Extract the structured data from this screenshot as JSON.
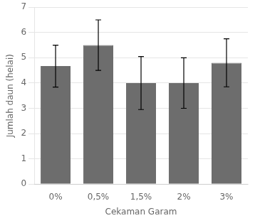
{
  "chart_data": {
    "type": "bar",
    "categories": [
      "0%",
      "0,5%",
      "1,5%",
      "2%",
      "3%"
    ],
    "values": [
      4.67,
      5.5,
      4.0,
      4.0,
      4.8
    ],
    "errors": [
      0.83,
      1.0,
      1.05,
      1.0,
      0.95
    ],
    "color": "#6d6d6d",
    "xlabel": "Cekaman Garam",
    "ylabel": "Jumlah daun (helai)",
    "ylim": [
      0,
      7
    ],
    "yticks": [
      0,
      1,
      2,
      3,
      4,
      5,
      6,
      7
    ],
    "grid": true
  }
}
